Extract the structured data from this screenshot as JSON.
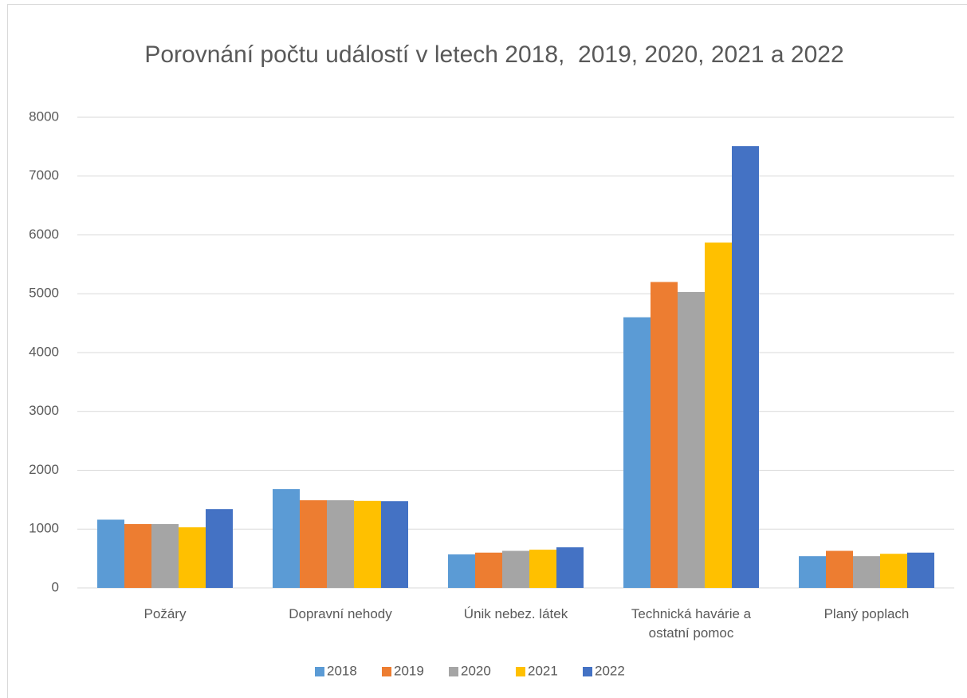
{
  "chart_data": {
    "type": "bar",
    "title": "Porovnání počtu událostí v letech 2018,  2019, 2020, 2021 a 2022",
    "categories": [
      "Požáry",
      "Dopravní nehody",
      "Únik nebez. látek",
      "Technická havárie a ostatní pomoc",
      "Planý poplach"
    ],
    "series": [
      {
        "name": "2018",
        "color": "#5b9bd5",
        "values": [
          1160,
          1680,
          570,
          4600,
          540
        ]
      },
      {
        "name": "2019",
        "color": "#ed7d31",
        "values": [
          1085,
          1490,
          600,
          5200,
          630
        ]
      },
      {
        "name": "2020",
        "color": "#a5a5a5",
        "values": [
          1085,
          1490,
          630,
          5030,
          540
        ]
      },
      {
        "name": "2021",
        "color": "#ffc000",
        "values": [
          1030,
          1480,
          650,
          5870,
          580
        ]
      },
      {
        "name": "2022",
        "color": "#4472c4",
        "values": [
          1340,
          1475,
          690,
          7510,
          600
        ]
      }
    ],
    "ylim": [
      0,
      8000
    ],
    "yticks": [
      0,
      1000,
      2000,
      3000,
      4000,
      5000,
      6000,
      7000,
      8000
    ],
    "grid": true,
    "legend": "bottom"
  }
}
